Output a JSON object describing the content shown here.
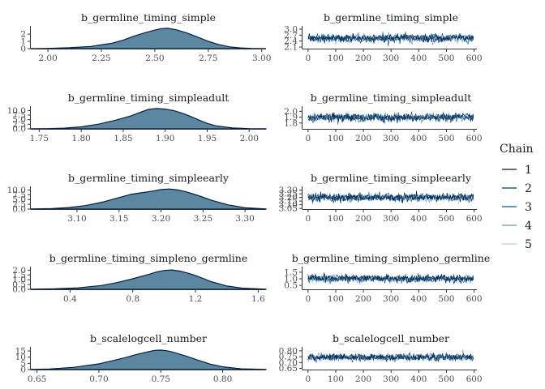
{
  "chart_data": [
    {
      "type": "area",
      "panel": "density",
      "title": "b_germline_timing_simple",
      "xlim": [
        1.92,
        3.02
      ],
      "ylim": [
        0,
        2.9
      ],
      "xticks": [
        2.0,
        2.25,
        2.5,
        2.75,
        3.0
      ],
      "xtick_labels": [
        "2.00",
        "2.25",
        "2.50",
        "2.75",
        "3.00"
      ],
      "yticks": [
        0,
        1,
        2
      ],
      "ytick_labels": [
        "0",
        "1",
        "2"
      ],
      "density": {
        "x": [
          1.92,
          2.0,
          2.1,
          2.2,
          2.3,
          2.35,
          2.4,
          2.45,
          2.5,
          2.53,
          2.56,
          2.6,
          2.65,
          2.7,
          2.75,
          2.8,
          2.85,
          2.9,
          2.95,
          3.02
        ],
        "y": [
          0.0,
          0.03,
          0.12,
          0.3,
          0.75,
          1.15,
          1.7,
          2.15,
          2.55,
          2.75,
          2.8,
          2.6,
          2.15,
          1.6,
          1.0,
          0.55,
          0.25,
          0.1,
          0.03,
          0.0
        ]
      }
    },
    {
      "type": "line",
      "panel": "trace",
      "title": "b_germline_timing_simple",
      "xlim": [
        -20,
        610
      ],
      "ylim": [
        2.02,
        3.08
      ],
      "xticks": [
        0,
        100,
        200,
        300,
        400,
        500,
        600
      ],
      "xtick_labels": [
        "0",
        "100",
        "200",
        "300",
        "400",
        "500",
        "600"
      ],
      "yticks": [
        2.1,
        2.4,
        2.7,
        3.0
      ],
      "ytick_labels": [
        "2.1",
        "2.4",
        "2.7",
        "3.0"
      ],
      "trace": {
        "center": 2.55,
        "spread": 0.28,
        "n": 600,
        "chains": 5
      }
    },
    {
      "type": "area",
      "panel": "density",
      "title": "b_germline_timing_simpleadult",
      "xlim": [
        1.74,
        2.02
      ],
      "ylim": [
        0,
        11.5
      ],
      "xticks": [
        1.75,
        1.8,
        1.85,
        1.9,
        1.95,
        2.0
      ],
      "xtick_labels": [
        "1.75",
        "1.80",
        "1.85",
        "1.90",
        "1.95",
        "2.00"
      ],
      "yticks": [
        0,
        2.5,
        5,
        7.5,
        10
      ],
      "ytick_labels": [
        "0.0",
        "2.5",
        "5.0",
        "7.5",
        "10.0"
      ],
      "density": {
        "x": [
          1.74,
          1.76,
          1.78,
          1.8,
          1.82,
          1.84,
          1.86,
          1.87,
          1.88,
          1.89,
          1.9,
          1.91,
          1.92,
          1.93,
          1.94,
          1.95,
          1.96,
          1.98,
          2.0,
          2.02
        ],
        "y": [
          0.05,
          0.15,
          0.4,
          1.1,
          2.5,
          4.6,
          7.2,
          9.0,
          10.6,
          11.1,
          10.8,
          10.0,
          8.6,
          6.8,
          4.8,
          3.0,
          1.7,
          0.5,
          0.15,
          0.05
        ]
      }
    },
    {
      "type": "line",
      "panel": "trace",
      "title": "b_germline_timing_simpleadult",
      "xlim": [
        -20,
        610
      ],
      "ylim": [
        1.7,
        2.06
      ],
      "xticks": [
        0,
        100,
        200,
        300,
        400,
        500,
        600
      ],
      "xtick_labels": [
        "0",
        "100",
        "200",
        "300",
        "400",
        "500",
        "600"
      ],
      "yticks": [
        1.8,
        1.9,
        2.0
      ],
      "ytick_labels": [
        "1.8",
        "1.9",
        "2.0"
      ],
      "trace": {
        "center": 1.895,
        "spread": 0.09,
        "n": 600,
        "chains": 5
      }
    },
    {
      "type": "area",
      "panel": "density",
      "title": "b_germline_timing_simpleearly",
      "xlim": [
        3.045,
        3.325
      ],
      "ylim": [
        0,
        11.0
      ],
      "xticks": [
        3.1,
        3.15,
        3.2,
        3.25,
        3.3
      ],
      "xtick_labels": [
        "3.10",
        "3.15",
        "3.20",
        "3.25",
        "3.30"
      ],
      "yticks": [
        0,
        2.5,
        5,
        7.5,
        10
      ],
      "ytick_labels": [
        "0.0",
        "2.5",
        "5.0",
        "7.5",
        "10.0"
      ],
      "density": {
        "x": [
          3.045,
          3.07,
          3.09,
          3.11,
          3.13,
          3.15,
          3.165,
          3.18,
          3.19,
          3.2,
          3.21,
          3.22,
          3.23,
          3.245,
          3.26,
          3.28,
          3.3,
          3.325
        ],
        "y": [
          0.1,
          0.3,
          0.8,
          1.8,
          3.6,
          6.0,
          7.8,
          8.7,
          9.4,
          10.2,
          10.5,
          10.0,
          9.0,
          7.0,
          4.6,
          2.2,
          0.7,
          0.1
        ]
      }
    },
    {
      "type": "line",
      "panel": "trace",
      "title": "b_germline_timing_simpleearly",
      "xlim": [
        -20,
        610
      ],
      "ylim": [
        3.04,
        3.33
      ],
      "xticks": [
        0,
        100,
        200,
        300,
        400,
        500,
        600
      ],
      "xtick_labels": [
        "0",
        "100",
        "200",
        "300",
        "400",
        "500",
        "600"
      ],
      "yticks": [
        3.05,
        3.1,
        3.15,
        3.2,
        3.25,
        3.3
      ],
      "ytick_labels": [
        "3.05",
        "3.10",
        "3.15",
        "3.20",
        "3.25",
        "3.30"
      ],
      "trace": {
        "center": 3.2,
        "spread": 0.075,
        "n": 600,
        "chains": 5
      }
    },
    {
      "type": "area",
      "panel": "density",
      "title": "b_germline_timing_simpleno_germline",
      "xlim": [
        0.15,
        1.65
      ],
      "ylim": [
        0,
        2.2
      ],
      "xticks": [
        0.4,
        0.8,
        1.2,
        1.6
      ],
      "xtick_labels": [
        "0.4",
        "0.8",
        "1.2",
        "1.6"
      ],
      "yticks": [
        0,
        0.5,
        1,
        1.5,
        2
      ],
      "ytick_labels": [
        "0.0",
        "0.5",
        "1.0",
        "1.5",
        "2.0"
      ],
      "density": {
        "x": [
          0.15,
          0.3,
          0.45,
          0.6,
          0.7,
          0.8,
          0.9,
          0.95,
          1.0,
          1.05,
          1.1,
          1.15,
          1.2,
          1.3,
          1.4,
          1.5,
          1.65
        ],
        "y": [
          0.01,
          0.05,
          0.15,
          0.4,
          0.7,
          1.1,
          1.55,
          1.8,
          1.97,
          2.02,
          1.9,
          1.7,
          1.45,
          0.8,
          0.35,
          0.12,
          0.02
        ]
      }
    },
    {
      "type": "line",
      "panel": "trace",
      "title": "b_germline_timing_simpleno_germline",
      "xlim": [
        -20,
        610
      ],
      "ylim": [
        0.2,
        1.8
      ],
      "xticks": [
        0,
        100,
        200,
        300,
        400,
        500,
        600
      ],
      "xtick_labels": [
        "0",
        "100",
        "200",
        "300",
        "400",
        "500",
        "600"
      ],
      "yticks": [
        0.5,
        1.0,
        1.5
      ],
      "ytick_labels": [
        "0.5",
        "1.0",
        "1.5"
      ],
      "trace": {
        "center": 1.02,
        "spread": 0.4,
        "n": 600,
        "chains": 5
      }
    },
    {
      "type": "area",
      "panel": "density",
      "title": "b_scalelogcell_number",
      "xlim": [
        0.645,
        0.835
      ],
      "ylim": [
        0,
        17
      ],
      "xticks": [
        0.65,
        0.7,
        0.75,
        0.8
      ],
      "xtick_labels": [
        "0.65",
        "0.70",
        "0.75",
        "0.80"
      ],
      "yticks": [
        0,
        5,
        10,
        15
      ],
      "ytick_labels": [
        "0",
        "5",
        "10",
        "15"
      ],
      "density": {
        "x": [
          0.645,
          0.66,
          0.68,
          0.7,
          0.71,
          0.72,
          0.73,
          0.74,
          0.745,
          0.75,
          0.755,
          0.76,
          0.77,
          0.78,
          0.79,
          0.8,
          0.815,
          0.835
        ],
        "y": [
          0.1,
          0.4,
          1.8,
          4.6,
          6.9,
          9.3,
          12.0,
          14.4,
          15.5,
          15.7,
          15.2,
          14.0,
          11.0,
          7.6,
          4.4,
          2.2,
          0.6,
          0.1
        ]
      }
    },
    {
      "type": "line",
      "panel": "trace",
      "title": "b_scalelogcell_number",
      "xlim": [
        -20,
        610
      ],
      "ylim": [
        0.64,
        0.82
      ],
      "xticks": [
        0,
        100,
        200,
        300,
        400,
        500,
        600
      ],
      "xtick_labels": [
        "0",
        "100",
        "200",
        "300",
        "400",
        "500",
        "600"
      ],
      "yticks": [
        0.65,
        0.7,
        0.75,
        0.8
      ],
      "ytick_labels": [
        "0.65",
        "0.70",
        "0.75",
        "0.80"
      ],
      "trace": {
        "center": 0.745,
        "spread": 0.04,
        "n": 600,
        "chains": 5
      }
    }
  ],
  "legend": {
    "title": "Chain",
    "entries": [
      "1",
      "2",
      "3",
      "4",
      "5"
    ],
    "colors": [
      "#011f4b",
      "#03396c",
      "#005b96",
      "#6497b1",
      "#b3cde0"
    ]
  },
  "density_fill": "#5b87a1",
  "density_stroke": "#011f4b"
}
